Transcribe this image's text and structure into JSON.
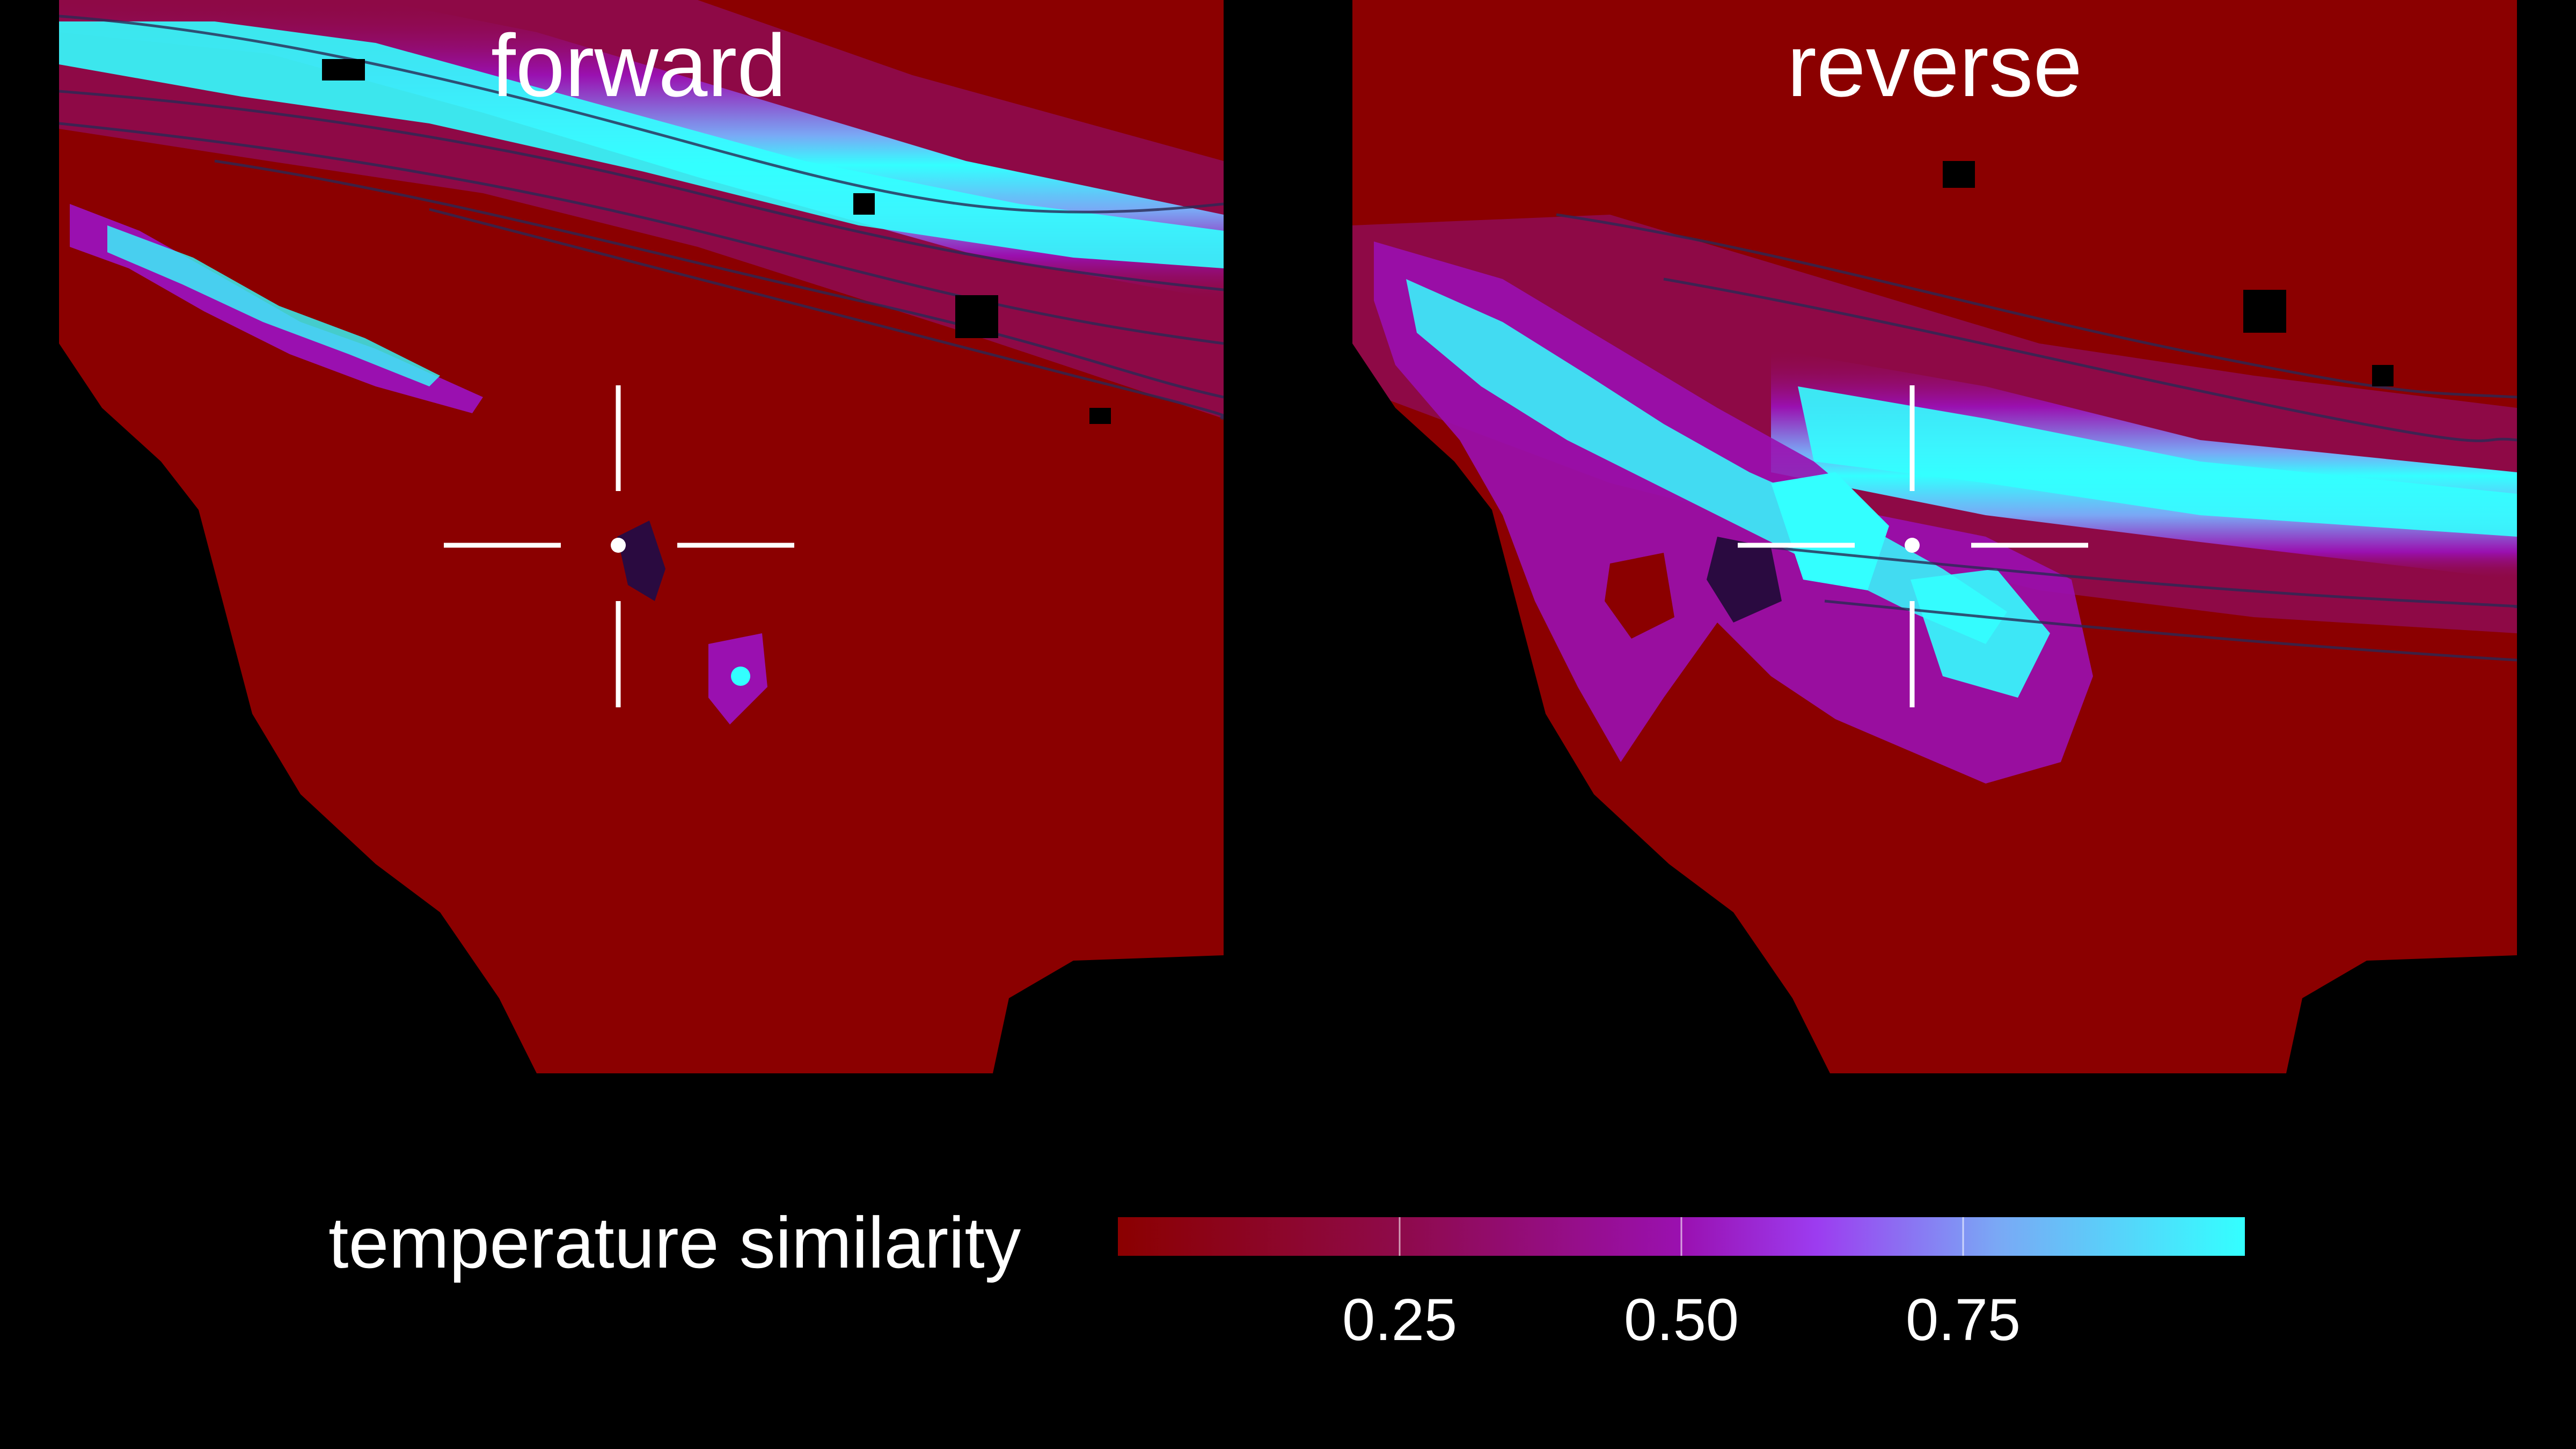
{
  "panels": [
    {
      "id": "forward",
      "title": "forward"
    },
    {
      "id": "reverse",
      "title": "reverse"
    }
  ],
  "legend": {
    "label": "temperature similarity",
    "ticks": [
      {
        "value": 0.25,
        "label": "0.25"
      },
      {
        "value": 0.5,
        "label": "0.50"
      },
      {
        "value": 0.75,
        "label": "0.75"
      }
    ],
    "range": [
      0,
      1
    ],
    "colors": [
      "#8b0000",
      "#8e0a4a",
      "#9a10b0",
      "#9c3cf0",
      "#7aa8f5",
      "#33ffff"
    ]
  },
  "background_color": "#000000",
  "land_color": "#8b0000",
  "ocean_color": "#000000",
  "marker_color": "#ffffff"
}
